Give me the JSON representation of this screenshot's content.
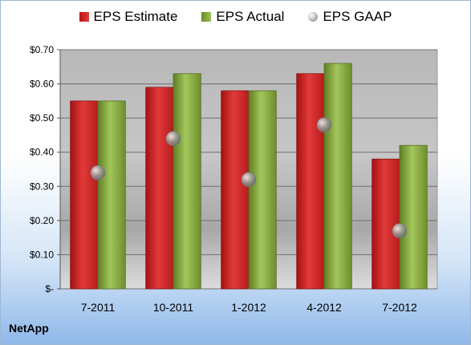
{
  "chart_data": {
    "type": "bar",
    "categories": [
      "7-2011",
      "10-2011",
      "1-2012",
      "4-2012",
      "7-2012"
    ],
    "series": [
      {
        "name": "EPS Estimate",
        "values": [
          0.55,
          0.59,
          0.58,
          0.63,
          0.38
        ],
        "color": "#c8201f"
      },
      {
        "name": "EPS Actual",
        "values": [
          0.55,
          0.63,
          0.58,
          0.66,
          0.42
        ],
        "color": "#8aad42"
      },
      {
        "name": "EPS GAAP",
        "values": [
          0.34,
          0.44,
          0.32,
          0.48,
          0.17
        ],
        "color": "#a0a0a0",
        "marker": "circle"
      }
    ],
    "yticks": [
      "$-",
      "$0.10",
      "$0.20",
      "$0.30",
      "$0.40",
      "$0.50",
      "$0.60",
      "$0.70"
    ],
    "ylim": [
      0,
      0.7
    ],
    "grid": true,
    "legend": "top"
  },
  "company": "NetApp"
}
